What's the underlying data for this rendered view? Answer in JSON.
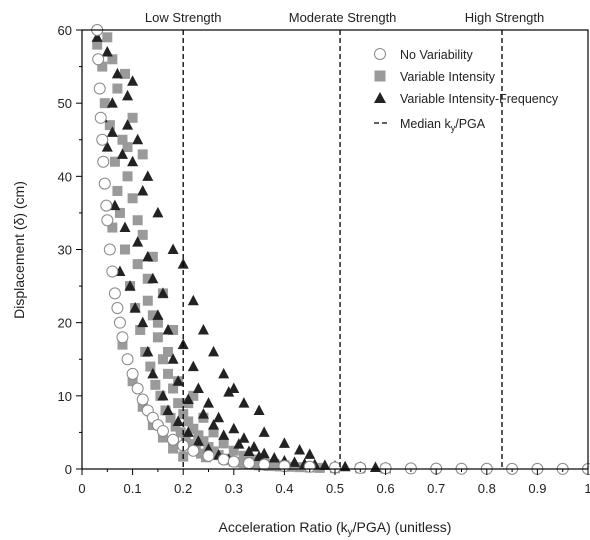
{
  "chart_data": {
    "type": "scatter",
    "xlabel": "Acceleration Ratio (k",
    "xlabel_sub": "y",
    "xlabel_end": "/PGA) (unitless)",
    "ylabel": "Displacement (δ) (cm)",
    "xlim": [
      0,
      1
    ],
    "ylim": [
      0,
      60
    ],
    "x_ticks": [
      "0",
      "0.1",
      "0.2",
      "0.3",
      "0.4",
      "0.5",
      "0.6",
      "0.7",
      "0.8",
      "0.9",
      "1"
    ],
    "y_ticks": [
      "0",
      "10",
      "20",
      "30",
      "40",
      "50",
      "60"
    ],
    "grid": false,
    "legend_position": "top-right",
    "strength_regions": [
      {
        "label": "Low Strength",
        "median_x": 0.2
      },
      {
        "label": "Moderate Strength",
        "median_x": 0.51
      },
      {
        "label": "High Strength",
        "median_x": 0.83
      }
    ],
    "series": [
      {
        "name": "No Variability",
        "marker": "circle",
        "color": "#ffffff",
        "stroke": "#888888",
        "points": [
          [
            0.03,
            60
          ],
          [
            0.032,
            56
          ],
          [
            0.035,
            52
          ],
          [
            0.037,
            48
          ],
          [
            0.04,
            45
          ],
          [
            0.042,
            42
          ],
          [
            0.045,
            39
          ],
          [
            0.048,
            36
          ],
          [
            0.05,
            34
          ],
          [
            0.055,
            30
          ],
          [
            0.06,
            27
          ],
          [
            0.065,
            24
          ],
          [
            0.07,
            22
          ],
          [
            0.075,
            20
          ],
          [
            0.08,
            18
          ],
          [
            0.09,
            15
          ],
          [
            0.1,
            13
          ],
          [
            0.11,
            11
          ],
          [
            0.12,
            9.5
          ],
          [
            0.13,
            8
          ],
          [
            0.14,
            7
          ],
          [
            0.15,
            6
          ],
          [
            0.16,
            5.2
          ],
          [
            0.18,
            4
          ],
          [
            0.2,
            3.2
          ],
          [
            0.22,
            2.5
          ],
          [
            0.25,
            1.8
          ],
          [
            0.28,
            1.3
          ],
          [
            0.3,
            1
          ],
          [
            0.33,
            0.8
          ],
          [
            0.36,
            0.6
          ],
          [
            0.4,
            0.4
          ],
          [
            0.45,
            0.3
          ],
          [
            0.5,
            0.2
          ],
          [
            0.55,
            0.15
          ],
          [
            0.6,
            0.1
          ],
          [
            0.65,
            0.08
          ],
          [
            0.7,
            0.05
          ],
          [
            0.75,
            0.04
          ],
          [
            0.8,
            0.03
          ],
          [
            0.85,
            0.02
          ],
          [
            0.9,
            0.01
          ],
          [
            0.95,
            0.01
          ],
          [
            1.0,
            0
          ]
        ]
      },
      {
        "name": "Variable Intensity",
        "marker": "square",
        "color": "#9a9a9a",
        "points": [
          [
            0.03,
            58
          ],
          [
            0.04,
            55
          ],
          [
            0.05,
            59
          ],
          [
            0.06,
            56
          ],
          [
            0.045,
            50
          ],
          [
            0.055,
            47
          ],
          [
            0.07,
            52
          ],
          [
            0.08,
            45
          ],
          [
            0.065,
            42
          ],
          [
            0.09,
            40
          ],
          [
            0.1,
            37
          ],
          [
            0.075,
            35
          ],
          [
            0.06,
            33
          ],
          [
            0.085,
            30
          ],
          [
            0.11,
            28
          ],
          [
            0.12,
            32
          ],
          [
            0.095,
            25
          ],
          [
            0.13,
            26
          ],
          [
            0.105,
            22
          ],
          [
            0.14,
            21
          ],
          [
            0.115,
            19
          ],
          [
            0.15,
            18
          ],
          [
            0.08,
            17
          ],
          [
            0.125,
            16
          ],
          [
            0.16,
            15
          ],
          [
            0.135,
            14
          ],
          [
            0.17,
            13
          ],
          [
            0.1,
            12
          ],
          [
            0.145,
            11.5
          ],
          [
            0.18,
            11
          ],
          [
            0.155,
            10
          ],
          [
            0.19,
            9
          ],
          [
            0.12,
            8.5
          ],
          [
            0.165,
            8
          ],
          [
            0.2,
            7.5
          ],
          [
            0.175,
            7
          ],
          [
            0.21,
            6.5
          ],
          [
            0.14,
            6
          ],
          [
            0.185,
            5.8
          ],
          [
            0.22,
            5.5
          ],
          [
            0.195,
            5
          ],
          [
            0.23,
            4.6
          ],
          [
            0.16,
            4.3
          ],
          [
            0.205,
            4
          ],
          [
            0.24,
            3.8
          ],
          [
            0.215,
            3.4
          ],
          [
            0.25,
            3
          ],
          [
            0.18,
            2.8
          ],
          [
            0.225,
            2.6
          ],
          [
            0.26,
            2.4
          ],
          [
            0.235,
            2.1
          ],
          [
            0.27,
            1.9
          ],
          [
            0.2,
            1.7
          ],
          [
            0.245,
            1.6
          ],
          [
            0.28,
            1.4
          ],
          [
            0.29,
            1.2
          ],
          [
            0.3,
            1
          ],
          [
            0.31,
            0.9
          ],
          [
            0.32,
            0.8
          ],
          [
            0.33,
            0.7
          ],
          [
            0.34,
            0.6
          ],
          [
            0.35,
            0.5
          ],
          [
            0.37,
            0.4
          ],
          [
            0.39,
            0.35
          ],
          [
            0.41,
            0.3
          ],
          [
            0.43,
            0.25
          ],
          [
            0.45,
            0.2
          ],
          [
            0.47,
            0.15
          ],
          [
            0.5,
            0.1
          ],
          [
            0.55,
            0.08
          ],
          [
            0.6,
            0.05
          ],
          [
            0.07,
            38
          ],
          [
            0.09,
            44
          ],
          [
            0.11,
            34
          ],
          [
            0.13,
            23
          ],
          [
            0.15,
            20
          ],
          [
            0.17,
            16
          ],
          [
            0.19,
            12
          ],
          [
            0.21,
            9
          ],
          [
            0.12,
            43
          ],
          [
            0.1,
            48
          ],
          [
            0.085,
            54
          ],
          [
            0.14,
            29
          ],
          [
            0.16,
            24
          ],
          [
            0.18,
            19
          ],
          [
            0.22,
            10
          ],
          [
            0.24,
            7
          ],
          [
            0.26,
            5
          ],
          [
            0.28,
            3.5
          ],
          [
            0.3,
            2.5
          ],
          [
            0.32,
            1.8
          ],
          [
            0.34,
            1.3
          ],
          [
            0.36,
            1
          ],
          [
            0.38,
            0.7
          ],
          [
            0.4,
            0.5
          ]
        ]
      },
      {
        "name": "Variable Intensity-Frequency",
        "marker": "triangle",
        "color": "#222222",
        "points": [
          [
            0.03,
            59
          ],
          [
            0.05,
            57
          ],
          [
            0.07,
            54
          ],
          [
            0.09,
            51
          ],
          [
            0.04,
            48
          ],
          [
            0.06,
            46
          ],
          [
            0.08,
            43
          ],
          [
            0.1,
            42
          ],
          [
            0.12,
            38
          ],
          [
            0.065,
            36
          ],
          [
            0.085,
            33
          ],
          [
            0.11,
            31
          ],
          [
            0.13,
            29
          ],
          [
            0.075,
            27
          ],
          [
            0.095,
            25
          ],
          [
            0.14,
            26
          ],
          [
            0.16,
            24
          ],
          [
            0.105,
            22
          ],
          [
            0.12,
            20
          ],
          [
            0.15,
            21
          ],
          [
            0.17,
            19
          ],
          [
            0.2,
            17
          ],
          [
            0.13,
            16
          ],
          [
            0.18,
            15
          ],
          [
            0.22,
            14
          ],
          [
            0.14,
            13
          ],
          [
            0.19,
            12
          ],
          [
            0.23,
            11
          ],
          [
            0.16,
            10
          ],
          [
            0.21,
            9.5
          ],
          [
            0.25,
            9
          ],
          [
            0.17,
            8
          ],
          [
            0.24,
            7.5
          ],
          [
            0.27,
            7
          ],
          [
            0.19,
            6.5
          ],
          [
            0.26,
            6
          ],
          [
            0.3,
            5.5
          ],
          [
            0.21,
            5
          ],
          [
            0.28,
            4.6
          ],
          [
            0.32,
            4.2
          ],
          [
            0.23,
            3.8
          ],
          [
            0.31,
            3.4
          ],
          [
            0.34,
            3
          ],
          [
            0.25,
            2.7
          ],
          [
            0.33,
            2.4
          ],
          [
            0.36,
            2.1
          ],
          [
            0.27,
            1.9
          ],
          [
            0.35,
            1.7
          ],
          [
            0.38,
            1.5
          ],
          [
            0.29,
            1.3
          ],
          [
            0.4,
            1.1
          ],
          [
            0.42,
            0.9
          ],
          [
            0.44,
            0.7
          ],
          [
            0.46,
            0.6
          ],
          [
            0.48,
            0.5
          ],
          [
            0.5,
            0.4
          ],
          [
            0.52,
            0.3
          ],
          [
            0.55,
            0.25
          ],
          [
            0.58,
            0.2
          ],
          [
            0.6,
            0.15
          ],
          [
            0.05,
            44
          ],
          [
            0.1,
            53
          ],
          [
            0.15,
            35
          ],
          [
            0.2,
            28
          ],
          [
            0.22,
            23
          ],
          [
            0.24,
            19
          ],
          [
            0.26,
            16
          ],
          [
            0.28,
            13
          ],
          [
            0.3,
            11
          ],
          [
            0.18,
            30
          ],
          [
            0.09,
            47
          ],
          [
            0.13,
            40
          ],
          [
            0.11,
            45
          ],
          [
            0.06,
            50
          ],
          [
            0.35,
            8
          ],
          [
            0.32,
            9
          ],
          [
            0.29,
            10.5
          ],
          [
            0.36,
            5
          ],
          [
            0.4,
            3.5
          ],
          [
            0.43,
            2.6
          ],
          [
            0.45,
            2
          ]
        ]
      }
    ],
    "legend_extra": {
      "name_prefix": "Median k",
      "name_sub": "y",
      "name_suffix": "/PGA",
      "marker": "dashed-line"
    }
  }
}
